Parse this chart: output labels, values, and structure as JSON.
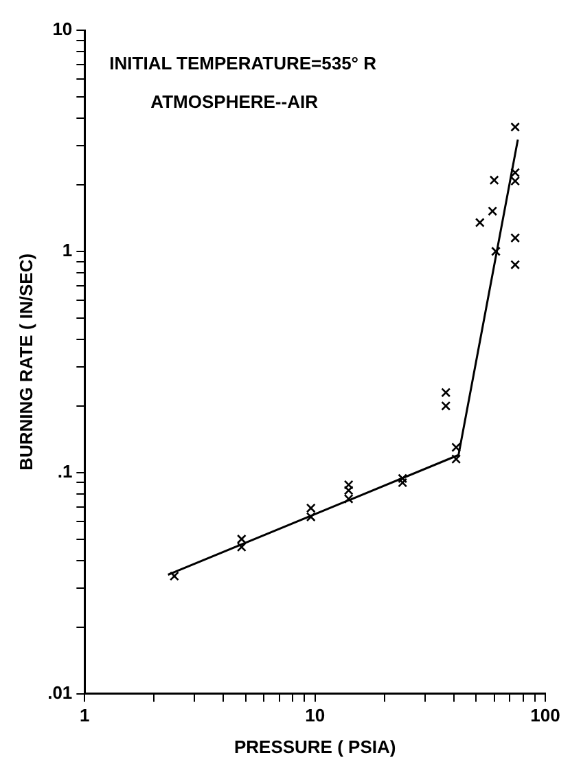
{
  "chart_data": {
    "type": "scatter",
    "xlabel": "PRESSURE ( PSIA)",
    "ylabel": "BURNING RATE ( IN/SEC)",
    "annotations": [
      "INITIAL TEMPERATURE=535° R",
      "ATMOSPHERE--AIR"
    ],
    "log": "xy",
    "grid": false,
    "legend": false,
    "marker": "cross",
    "xlim": [
      1,
      100
    ],
    "ylim": [
      0.01,
      10
    ],
    "xticks": [
      1,
      {
        "value": 2,
        "label": null
      },
      {
        "value": 3,
        "label": null
      },
      {
        "value": 4,
        "label": null
      },
      {
        "value": 5,
        "label": null
      },
      {
        "value": 6,
        "label": null
      },
      {
        "value": 7,
        "label": null
      },
      {
        "value": 8,
        "label": null
      },
      {
        "value": 9,
        "label": null
      },
      10,
      {
        "value": 20,
        "label": null
      },
      {
        "value": 30,
        "label": null
      },
      {
        "value": 40,
        "label": null
      },
      {
        "value": 50,
        "label": null
      },
      {
        "value": 60,
        "label": null
      },
      {
        "value": 70,
        "label": null
      },
      {
        "value": 80,
        "label": null
      },
      {
        "value": 90,
        "label": null
      },
      100
    ],
    "yticks": [
      {
        "value": 0.01,
        "label": ".01"
      },
      {
        "value": 0.02,
        "label": null
      },
      {
        "value": 0.03,
        "label": null
      },
      {
        "value": 0.04,
        "label": null
      },
      {
        "value": 0.05,
        "label": null
      },
      {
        "value": 0.06,
        "label": null
      },
      {
        "value": 0.07,
        "label": null
      },
      {
        "value": 0.08,
        "label": null
      },
      {
        "value": 0.09,
        "label": null
      },
      {
        "value": 0.1,
        "label": ".1"
      },
      {
        "value": 0.2,
        "label": null
      },
      {
        "value": 0.3,
        "label": null
      },
      {
        "value": 0.4,
        "label": null
      },
      {
        "value": 0.5,
        "label": null
      },
      {
        "value": 0.6,
        "label": null
      },
      {
        "value": 0.7,
        "label": null
      },
      {
        "value": 0.8,
        "label": null
      },
      {
        "value": 0.9,
        "label": null
      },
      1,
      {
        "value": 2,
        "label": null
      },
      {
        "value": 3,
        "label": null
      },
      {
        "value": 4,
        "label": null
      },
      {
        "value": 5,
        "label": null
      },
      {
        "value": 6,
        "label": null
      },
      {
        "value": 7,
        "label": null
      },
      {
        "value": 8,
        "label": null
      },
      {
        "value": 9,
        "label": null
      },
      10
    ],
    "series": [
      {
        "color": "#000000",
        "x": [
          2.45,
          4.8,
          4.8,
          9.6,
          9.6,
          14,
          14,
          14,
          24,
          24,
          37,
          37,
          41,
          41,
          52,
          59,
          60,
          61,
          74,
          74,
          74,
          74,
          74
        ],
        "values": [
          0.034,
          0.05,
          0.046,
          0.069,
          0.063,
          0.088,
          0.083,
          0.076,
          0.094,
          0.09,
          0.23,
          0.2,
          0.13,
          0.115,
          1.35,
          1.52,
          2.1,
          1.0,
          3.65,
          2.27,
          2.08,
          1.15,
          0.87
        ]
      },
      {
        "type": "line",
        "color": "#000000",
        "marker": "none",
        "x": [
          2.3,
          42,
          76
        ],
        "values": [
          0.0345,
          0.12,
          3.2
        ]
      }
    ]
  }
}
